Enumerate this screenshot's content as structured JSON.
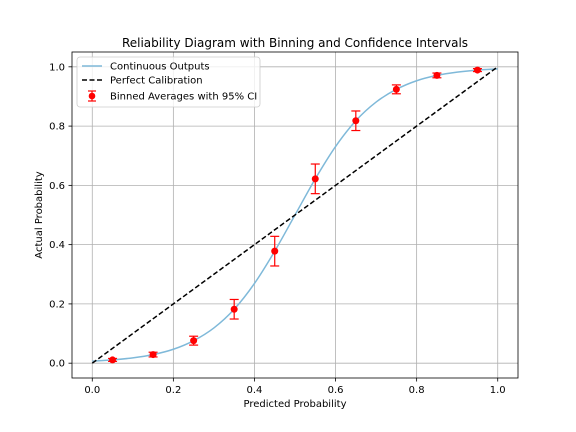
{
  "chart_data": {
    "type": "line",
    "title": "Reliability Diagram with Binning and Confidence Intervals",
    "xlabel": "Predicted Probability",
    "ylabel": "Actual Probability",
    "xlim": [
      -0.05,
      1.05
    ],
    "ylim": [
      -0.05,
      1.05
    ],
    "grid": true,
    "legend_position": "top-left",
    "x_ticks": [
      0.0,
      0.2,
      0.4,
      0.6,
      0.8,
      1.0
    ],
    "x_tick_labels": [
      "0.0",
      "0.2",
      "0.4",
      "0.6",
      "0.8",
      "1.0"
    ],
    "y_ticks": [
      0.0,
      0.2,
      0.4,
      0.6,
      0.8,
      1.0
    ],
    "y_tick_labels": [
      "0.0",
      "0.2",
      "0.4",
      "0.6",
      "0.8",
      "1.0"
    ],
    "series": [
      {
        "name": "Continuous Outputs",
        "kind": "line",
        "color": "#7fb9d9",
        "x": [
          0.0,
          0.05,
          0.1,
          0.15,
          0.2,
          0.25,
          0.3,
          0.35,
          0.4,
          0.45,
          0.5,
          0.55,
          0.6,
          0.65,
          0.7,
          0.75,
          0.8,
          0.85,
          0.9,
          0.95,
          1.0
        ],
        "y": [
          0.007,
          0.011,
          0.018,
          0.029,
          0.047,
          0.076,
          0.119,
          0.182,
          0.269,
          0.378,
          0.5,
          0.622,
          0.731,
          0.818,
          0.881,
          0.924,
          0.953,
          0.971,
          0.982,
          0.989,
          0.993
        ]
      },
      {
        "name": "Perfect Calibration",
        "kind": "dashed-line",
        "color": "#000000",
        "x": [
          0.0,
          1.0
        ],
        "y": [
          0.0,
          1.0
        ]
      },
      {
        "name": "Binned Averages with 95% CI",
        "kind": "errorbar",
        "color": "#ff0000",
        "x": [
          0.05,
          0.15,
          0.25,
          0.35,
          0.45,
          0.55,
          0.65,
          0.75,
          0.85,
          0.95
        ],
        "y": [
          0.011,
          0.029,
          0.076,
          0.182,
          0.378,
          0.622,
          0.818,
          0.924,
          0.971,
          0.989
        ],
        "err": [
          0.005,
          0.008,
          0.015,
          0.033,
          0.05,
          0.05,
          0.033,
          0.015,
          0.008,
          0.005
        ]
      }
    ]
  }
}
